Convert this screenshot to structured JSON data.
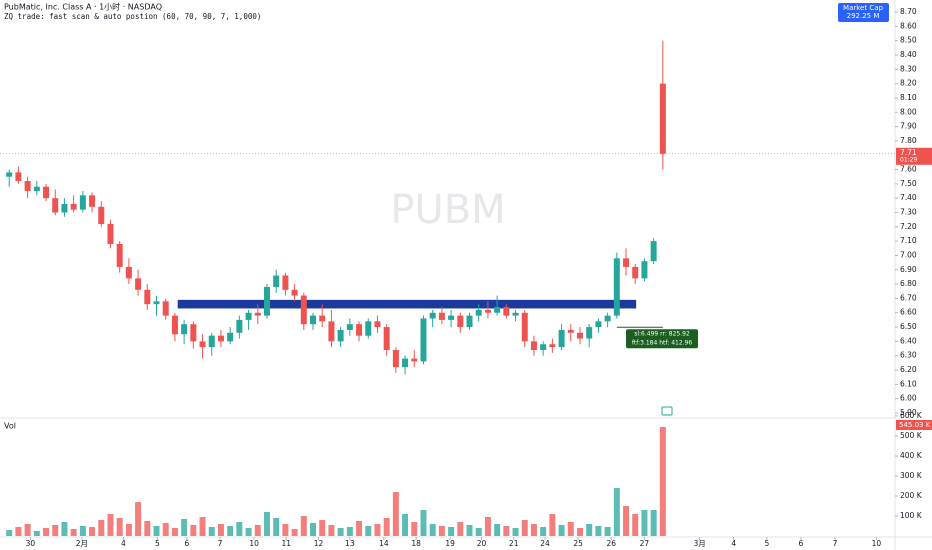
{
  "chart_data": {
    "type": "candlestick",
    "title": "PubMatic, Inc. Class A · 1小时 · NASDAQ",
    "subtitle": "ZQ trade: fast scan & auto postion (60, 70, 90, 7, 1,000)",
    "watermark": "PUBM",
    "market_cap_label": "Market Cap",
    "market_cap_value": "292.25 M",
    "up_color": "#26a69a",
    "down_color": "#ef5350",
    "open": [
      7.55,
      7.58,
      7.52,
      7.45,
      7.48,
      7.4,
      7.3,
      7.36,
      7.32,
      7.42,
      7.34,
      7.22,
      7.08,
      6.92,
      6.84,
      6.76,
      6.66,
      6.68,
      6.58,
      6.45,
      6.52,
      6.4,
      6.36,
      6.44,
      6.4,
      6.46,
      6.55,
      6.6,
      6.58,
      6.78,
      6.86,
      6.76,
      6.72,
      6.52,
      6.58,
      6.54,
      6.4,
      6.48,
      6.52,
      6.44,
      6.54,
      6.5,
      6.34,
      6.22,
      6.28,
      6.26,
      6.56,
      6.6,
      6.55,
      6.58,
      6.5,
      6.58,
      6.62,
      6.6,
      6.64,
      6.58,
      6.6,
      6.4,
      6.34,
      6.38,
      6.36,
      6.48,
      6.46,
      6.42,
      6.5,
      6.54,
      6.58,
      6.98,
      6.92,
      6.84,
      6.96,
      8.2
    ],
    "high": [
      7.6,
      7.62,
      7.55,
      7.52,
      7.5,
      7.46,
      7.4,
      7.42,
      7.45,
      7.44,
      7.38,
      7.25,
      7.1,
      6.98,
      6.9,
      6.8,
      6.72,
      6.7,
      6.6,
      6.55,
      6.54,
      6.45,
      6.46,
      6.48,
      6.5,
      6.58,
      6.62,
      6.66,
      6.8,
      6.9,
      6.88,
      6.8,
      6.74,
      6.6,
      6.66,
      6.62,
      6.5,
      6.56,
      6.54,
      6.56,
      6.58,
      6.52,
      6.36,
      6.3,
      6.34,
      6.58,
      6.62,
      6.64,
      6.62,
      6.6,
      6.6,
      6.66,
      6.68,
      6.72,
      6.66,
      6.62,
      6.62,
      6.44,
      6.4,
      6.42,
      6.52,
      6.52,
      6.5,
      6.52,
      6.56,
      6.6,
      7.02,
      7.05,
      6.94,
      6.98,
      7.12,
      8.5
    ],
    "low": [
      7.48,
      7.5,
      7.4,
      7.42,
      7.38,
      7.28,
      7.27,
      7.3,
      7.3,
      7.3,
      7.2,
      7.05,
      6.88,
      6.8,
      6.72,
      6.62,
      6.58,
      6.55,
      6.4,
      6.38,
      6.35,
      6.28,
      6.3,
      6.36,
      6.38,
      6.42,
      6.48,
      6.52,
      6.56,
      6.74,
      6.72,
      6.68,
      6.48,
      6.48,
      6.5,
      6.36,
      6.36,
      6.44,
      6.4,
      6.42,
      6.46,
      6.3,
      6.18,
      6.17,
      6.22,
      6.24,
      6.5,
      6.52,
      6.5,
      6.46,
      6.48,
      6.54,
      6.56,
      6.58,
      6.56,
      6.54,
      6.36,
      6.3,
      6.3,
      6.32,
      6.34,
      6.4,
      6.38,
      6.36,
      6.46,
      6.5,
      6.56,
      6.86,
      6.8,
      6.82,
      6.94,
      7.6
    ],
    "close": [
      7.58,
      7.52,
      7.45,
      7.48,
      7.4,
      7.3,
      7.36,
      7.32,
      7.42,
      7.34,
      7.22,
      7.08,
      6.92,
      6.84,
      6.76,
      6.66,
      6.68,
      6.58,
      6.45,
      6.52,
      6.4,
      6.36,
      6.44,
      6.4,
      6.46,
      6.55,
      6.6,
      6.58,
      6.78,
      6.86,
      6.76,
      6.72,
      6.52,
      6.58,
      6.54,
      6.4,
      6.48,
      6.52,
      6.44,
      6.54,
      6.5,
      6.34,
      6.22,
      6.28,
      6.26,
      6.56,
      6.6,
      6.55,
      6.58,
      6.5,
      6.58,
      6.62,
      6.6,
      6.64,
      6.58,
      6.6,
      6.4,
      6.34,
      6.38,
      6.36,
      6.48,
      6.46,
      6.42,
      6.5,
      6.54,
      6.58,
      6.98,
      6.92,
      6.84,
      6.96,
      7.1,
      7.71
    ],
    "last_price_label": "7.71",
    "last_time_label": "01:29",
    "xlim": [
      -1,
      96
    ],
    "ylim": [
      5.865,
      8.784
    ],
    "yticks": [
      {
        "value": 8.7,
        "label": "8.70"
      },
      {
        "value": 8.6,
        "label": "8.60"
      },
      {
        "value": 8.5,
        "label": "8.50"
      },
      {
        "value": 8.4,
        "label": "8.40"
      },
      {
        "value": 8.3,
        "label": "8.30"
      },
      {
        "value": 8.2,
        "label": "8.20"
      },
      {
        "value": 8.1,
        "label": "8.10"
      },
      {
        "value": 8.0,
        "label": "8.00"
      },
      {
        "value": 7.9,
        "label": "7.90"
      },
      {
        "value": 7.8,
        "label": "7.80"
      },
      {
        "value": 7.6,
        "label": "7.60"
      },
      {
        "value": 7.5,
        "label": "7.50"
      },
      {
        "value": 7.4,
        "label": "7.40"
      },
      {
        "value": 7.3,
        "label": "7.30"
      },
      {
        "value": 7.2,
        "label": "7.20"
      },
      {
        "value": 7.1,
        "label": "7.10"
      },
      {
        "value": 7.0,
        "label": "7.00"
      },
      {
        "value": 6.9,
        "label": "6.90"
      },
      {
        "value": 6.8,
        "label": "6.80"
      },
      {
        "value": 6.7,
        "label": "6.70"
      },
      {
        "value": 6.6,
        "label": "6.60"
      },
      {
        "value": 6.5,
        "label": "6.50"
      },
      {
        "value": 6.4,
        "label": "6.40"
      },
      {
        "value": 6.3,
        "label": "6.30"
      },
      {
        "value": 6.2,
        "label": "6.20"
      },
      {
        "value": 6.1,
        "label": "6.10"
      },
      {
        "value": 6.0,
        "label": "6.00"
      },
      {
        "value": 5.9,
        "label": "5.90"
      }
    ],
    "xticks": [
      {
        "value": 2.3,
        "label": "30"
      },
      {
        "value": 7.9,
        "label": "2月"
      },
      {
        "value": 12.4,
        "label": "4"
      },
      {
        "value": 16.1,
        "label": "5"
      },
      {
        "value": 19.3,
        "label": "6"
      },
      {
        "value": 22.9,
        "label": "7"
      },
      {
        "value": 26.6,
        "label": "10"
      },
      {
        "value": 30.1,
        "label": "11"
      },
      {
        "value": 33.6,
        "label": "12"
      },
      {
        "value": 37,
        "label": "13"
      },
      {
        "value": 40.7,
        "label": "14"
      },
      {
        "value": 44.2,
        "label": "18"
      },
      {
        "value": 47.9,
        "label": "19"
      },
      {
        "value": 51.3,
        "label": "20"
      },
      {
        "value": 54.8,
        "label": "21"
      },
      {
        "value": 58.2,
        "label": "24"
      },
      {
        "value": 61.8,
        "label": "25"
      },
      {
        "value": 65.4,
        "label": "26"
      },
      {
        "value": 69,
        "label": "27"
      },
      {
        "value": 75,
        "label": "3月"
      },
      {
        "value": 78.7,
        "label": "4"
      },
      {
        "value": 82.3,
        "label": "5"
      },
      {
        "value": 86,
        "label": "6"
      },
      {
        "value": 89.7,
        "label": "7"
      },
      {
        "value": 94.2,
        "label": "10"
      }
    ],
    "zone": {
      "start": 18.3,
      "end": 68.1,
      "low": 6.63,
      "high": 6.69,
      "color": "#1a3a9c"
    },
    "trade_box": {
      "line1": "sl:6.499 rr: 825.92",
      "line2": "ftf:3.184 htf: 412.96",
      "level": 6.499
    },
    "volume": {
      "label": "Vol",
      "values": [
        30000,
        45000,
        60000,
        25000,
        40000,
        55000,
        70000,
        35000,
        50000,
        45000,
        80000,
        110000,
        90000,
        60000,
        170000,
        75000,
        50000,
        65000,
        40000,
        85000,
        55000,
        95000,
        45000,
        60000,
        50000,
        70000,
        40000,
        55000,
        120000,
        90000,
        60000,
        35000,
        100000,
        65000,
        80000,
        55000,
        40000,
        45000,
        75000,
        50000,
        60000,
        90000,
        220000,
        110000,
        70000,
        130000,
        60000,
        50000,
        45000,
        70000,
        55000,
        40000,
        95000,
        60000,
        50000,
        40000,
        80000,
        60000,
        45000,
        110000,
        55000,
        70000,
        40000,
        60000,
        50000,
        45000,
        240000,
        150000,
        110000,
        130000,
        130000,
        545030
      ],
      "last_label": "545.03 K",
      "ylim": [
        0,
        600000
      ],
      "yticks": [
        {
          "value": 600000,
          "label": "600 K"
        },
        {
          "value": 500000,
          "label": "500 K"
        },
        {
          "value": 400000,
          "label": "400 K"
        },
        {
          "value": 300000,
          "label": "300 K"
        },
        {
          "value": 200000,
          "label": "200 K"
        },
        {
          "value": 100000,
          "label": "100 K"
        }
      ]
    }
  }
}
